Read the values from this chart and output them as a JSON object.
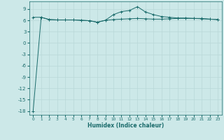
{
  "xlabel": "Humidex (Indice chaleur)",
  "background_color": "#cce8e8",
  "line_color": "#1a6b6b",
  "grid_color": "#b8d8d8",
  "x_values": [
    0,
    1,
    2,
    3,
    4,
    5,
    6,
    7,
    8,
    9,
    10,
    11,
    12,
    13,
    14,
    15,
    16,
    17,
    18,
    19,
    20,
    21,
    22,
    23
  ],
  "y_line1": [
    -18.0,
    6.8,
    6.2,
    6.1,
    6.1,
    6.1,
    6.0,
    5.9,
    5.5,
    6.0,
    7.5,
    8.3,
    8.6,
    9.6,
    8.2,
    7.5,
    7.0,
    6.8,
    6.6,
    6.6,
    6.5,
    6.5,
    6.3,
    6.2
  ],
  "y_line2": [
    6.8,
    6.8,
    6.2,
    6.1,
    6.1,
    6.1,
    6.0,
    5.9,
    5.5,
    6.0,
    6.2,
    6.3,
    6.4,
    6.5,
    6.4,
    6.3,
    6.3,
    6.4,
    6.5,
    6.5,
    6.5,
    6.4,
    6.3,
    6.2
  ],
  "ylim": [
    -19,
    11
  ],
  "xlim": [
    -0.5,
    23.5
  ],
  "yticks": [
    -18,
    -15,
    -12,
    -9,
    -6,
    -3,
    0,
    3,
    6,
    9
  ],
  "xticks": [
    0,
    1,
    2,
    3,
    4,
    5,
    6,
    7,
    8,
    9,
    10,
    11,
    12,
    13,
    14,
    15,
    16,
    17,
    18,
    19,
    20,
    21,
    22,
    23
  ]
}
